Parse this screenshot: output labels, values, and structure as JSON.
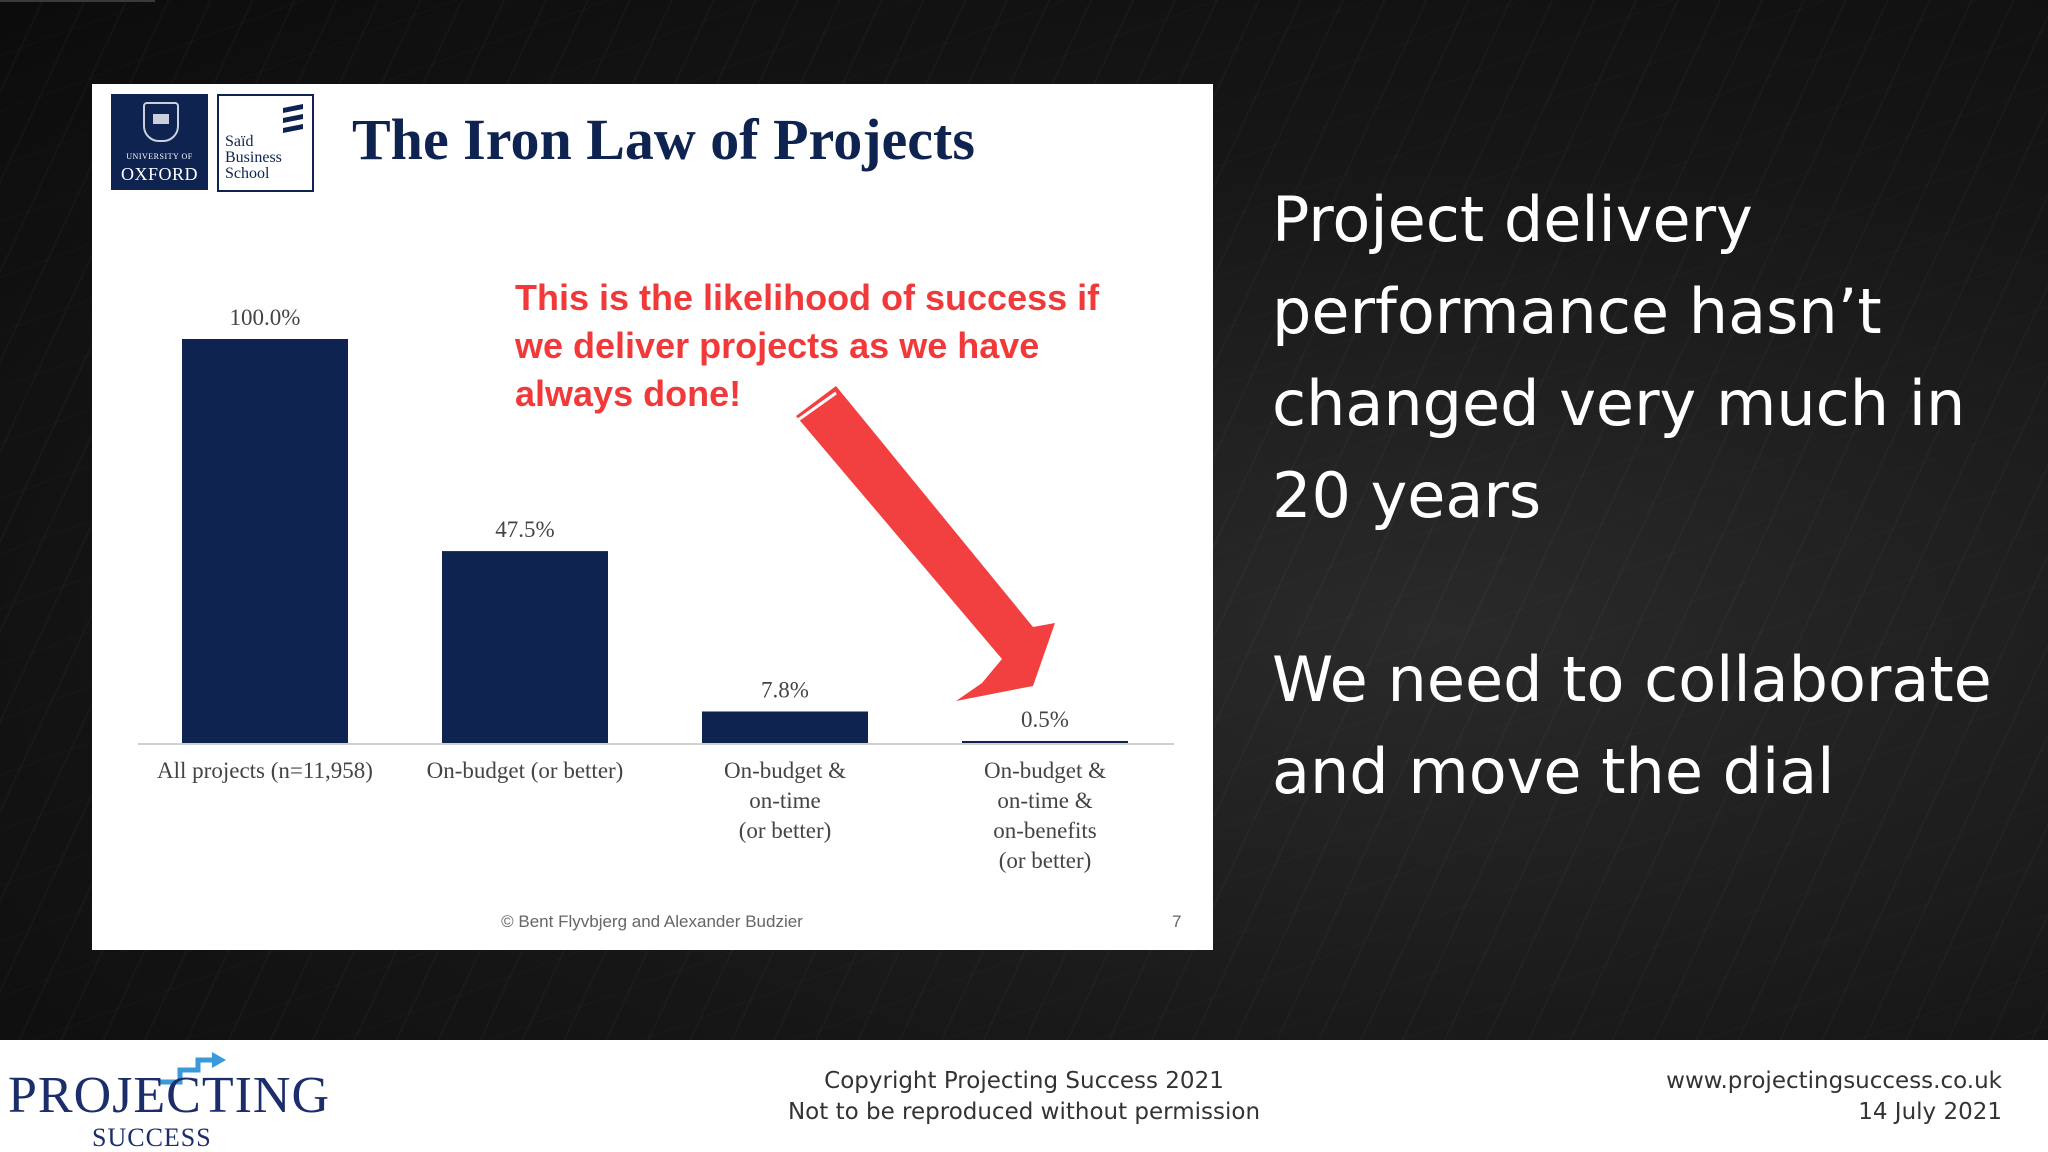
{
  "slide": {
    "title": "The Iron Law of Projects",
    "logos": {
      "oxford_small": "UNIVERSITY OF",
      "oxford_big": "OXFORD",
      "said": "Saïd\nBusiness\nSchool"
    },
    "annotation": "This is the likelihood of success if we deliver projects as we have always done!",
    "credit": "© Bent Flyvbjerg and Alexander Budzier",
    "page_number": "7"
  },
  "chart_data": {
    "type": "bar",
    "categories": [
      "All projects (n=11,958)",
      "On-budget (or better)",
      "On-budget &\non-time\n(or better)",
      "On-budget &\non-time &\non-benefits\n(or better)"
    ],
    "values": [
      100.0,
      47.5,
      7.8,
      0.5
    ],
    "data_labels": [
      "100.0%",
      "47.5%",
      "7.8%",
      "0.5%"
    ],
    "ylim": [
      0,
      100
    ],
    "bar_color": "#0e2350",
    "annotation_color": "#f2393a",
    "grid": false,
    "title": "The Iron Law of Projects"
  },
  "message": {
    "line1": "Project delivery performance hasn’t changed very much in 20 years",
    "line2": "We need to collaborate and move the dial"
  },
  "footer": {
    "logo_main": "PROJECTING",
    "logo_sub": "SUCCESS",
    "copyright_line1": "Copyright Projecting Success 2021",
    "copyright_line2": "Not to be reproduced without permission",
    "website": "www.projectingsuccess.co.uk",
    "date": "14 July 2021"
  }
}
